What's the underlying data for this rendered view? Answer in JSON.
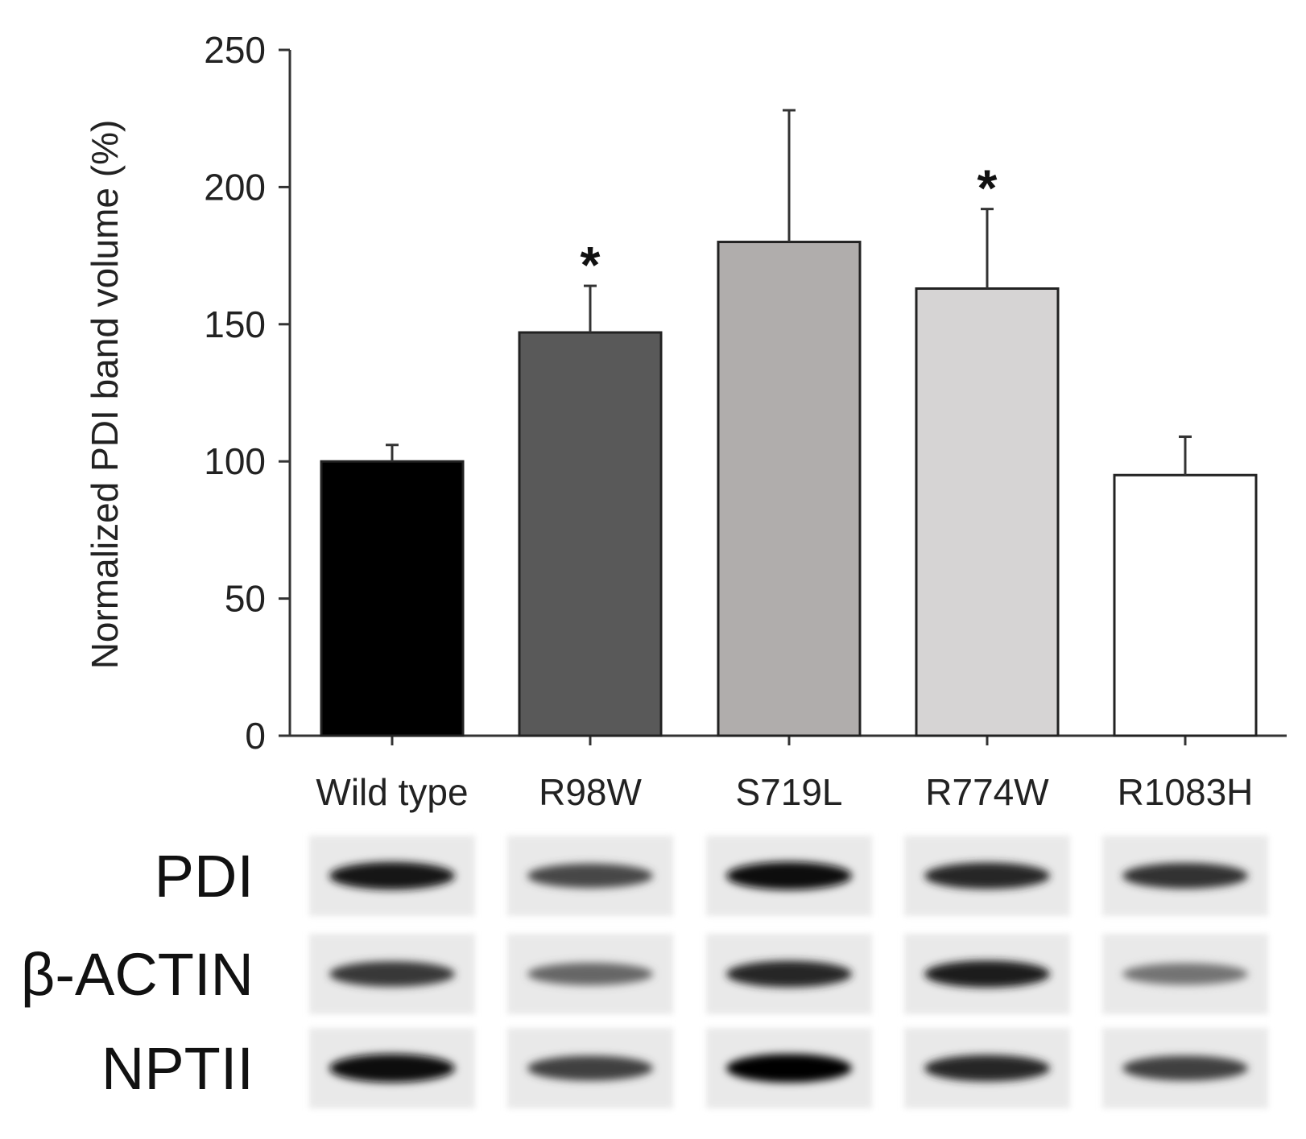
{
  "chart_data": {
    "type": "bar",
    "categories": [
      "Wild type",
      "R98W",
      "S719L",
      "R774W",
      "R1083H"
    ],
    "values": [
      100,
      147,
      180,
      163,
      95
    ],
    "error": [
      6,
      17,
      48,
      29,
      14
    ],
    "significant": [
      false,
      true,
      false,
      true,
      false
    ],
    "significance_marker": "*",
    "colors": [
      "#000000",
      "#595959",
      "#b0adac",
      "#d6d4d4",
      "#ffffff"
    ],
    "ylabel": "Normalized PDI band volume (%)",
    "ylim": [
      0,
      250
    ],
    "yticks": [
      0,
      50,
      100,
      150,
      200,
      250
    ],
    "grid": false,
    "legend": "none"
  },
  "blot": {
    "rows": [
      {
        "label": "PDI",
        "intensity": [
          0.92,
          0.72,
          0.95,
          0.85,
          0.8
        ]
      },
      {
        "label": "β-ACTIN",
        "intensity": [
          0.78,
          0.6,
          0.85,
          0.88,
          0.55
        ]
      },
      {
        "label": "NPTII",
        "intensity": [
          0.97,
          0.75,
          0.98,
          0.85,
          0.75
        ]
      }
    ]
  }
}
